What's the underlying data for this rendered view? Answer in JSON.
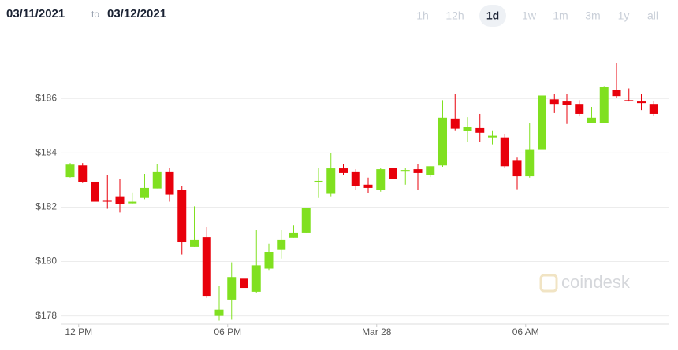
{
  "chart_data": {
    "type": "candlestick",
    "date_from": "03/11/2021",
    "to": "to",
    "date_to": "03/12/2021",
    "ranges": [
      "1h",
      "12h",
      "1d",
      "1w",
      "1m",
      "3m",
      "1y",
      "all"
    ],
    "active_range": 2,
    "watermark": "coindesk",
    "categories": [
      null,
      "12 PM",
      null,
      null,
      null,
      null,
      null,
      null,
      null,
      null,
      null,
      null,
      null,
      "06 PM",
      null,
      null,
      null,
      null,
      null,
      null,
      null,
      null,
      null,
      null,
      null,
      "Mar 28",
      null,
      null,
      null,
      null,
      null,
      null,
      null,
      null,
      null,
      null,
      null,
      "06 AM",
      null,
      null,
      null,
      null,
      null,
      null,
      null,
      null,
      null,
      null
    ],
    "open": [
      183.11,
      183.54,
      182.94,
      182.26,
      182.4,
      182.14,
      182.34,
      182.69,
      183.29,
      182.63,
      180.54,
      180.91,
      178.0,
      178.6,
      179.37,
      178.89,
      179.74,
      180.43,
      180.89,
      181.06,
      182.91,
      182.49,
      183.43,
      183.29,
      182.83,
      182.63,
      183.46,
      183.31,
      183.4,
      183.2,
      183.54,
      185.26,
      184.8,
      184.91,
      184.57,
      184.57,
      183.71,
      183.14,
      184.11,
      185.97,
      185.89,
      185.8,
      185.11,
      185.11,
      186.31,
      185.94,
      185.89,
      185.8
    ],
    "high": [
      183.63,
      183.63,
      183.17,
      183.2,
      183.03,
      182.54,
      183.23,
      183.6,
      183.46,
      182.77,
      182.03,
      181.26,
      179.09,
      179.97,
      179.97,
      181.17,
      180.66,
      181.17,
      181.34,
      181.97,
      183.46,
      184.0,
      183.6,
      183.4,
      183.09,
      183.46,
      183.54,
      183.46,
      183.6,
      183.51,
      185.94,
      186.17,
      185.31,
      185.43,
      184.83,
      184.69,
      183.83,
      185.11,
      186.17,
      186.17,
      186.17,
      185.94,
      185.69,
      186.46,
      187.31,
      186.37,
      186.17,
      185.91
    ],
    "low": [
      183.09,
      182.89,
      182.06,
      181.94,
      181.8,
      182.11,
      182.29,
      182.69,
      182.2,
      180.26,
      180.54,
      178.66,
      177.83,
      177.86,
      178.97,
      178.86,
      179.69,
      180.11,
      180.89,
      181.06,
      182.34,
      182.4,
      183.17,
      182.63,
      182.51,
      182.57,
      182.6,
      182.83,
      182.63,
      183.11,
      183.49,
      184.83,
      184.4,
      184.4,
      184.31,
      183.46,
      182.66,
      183.09,
      183.91,
      185.46,
      185.06,
      185.34,
      185.11,
      185.11,
      186.03,
      185.89,
      185.57,
      185.37
    ],
    "close": [
      183.57,
      182.94,
      182.2,
      182.2,
      182.11,
      182.2,
      182.71,
      183.29,
      182.46,
      180.71,
      180.8,
      178.74,
      178.23,
      179.43,
      179.03,
      179.86,
      180.34,
      180.8,
      181.06,
      181.97,
      182.97,
      183.43,
      183.26,
      182.77,
      182.71,
      183.4,
      183.03,
      183.37,
      183.26,
      183.51,
      185.29,
      184.89,
      184.94,
      184.74,
      184.63,
      183.51,
      183.14,
      184.11,
      186.11,
      185.8,
      185.77,
      185.43,
      185.29,
      186.43,
      186.09,
      185.91,
      185.83,
      185.43
    ],
    "up_color": "#80e020",
    "down_color": "#e8000b",
    "ylim": [
      177.7,
      187.6
    ],
    "yticks": [
      {
        "value": 178,
        "label": "$178"
      },
      {
        "value": 180,
        "label": "$180"
      },
      {
        "value": 182,
        "label": "$182"
      },
      {
        "value": 184,
        "label": "$184"
      },
      {
        "value": 186,
        "label": "$186"
      }
    ],
    "grid": true
  }
}
